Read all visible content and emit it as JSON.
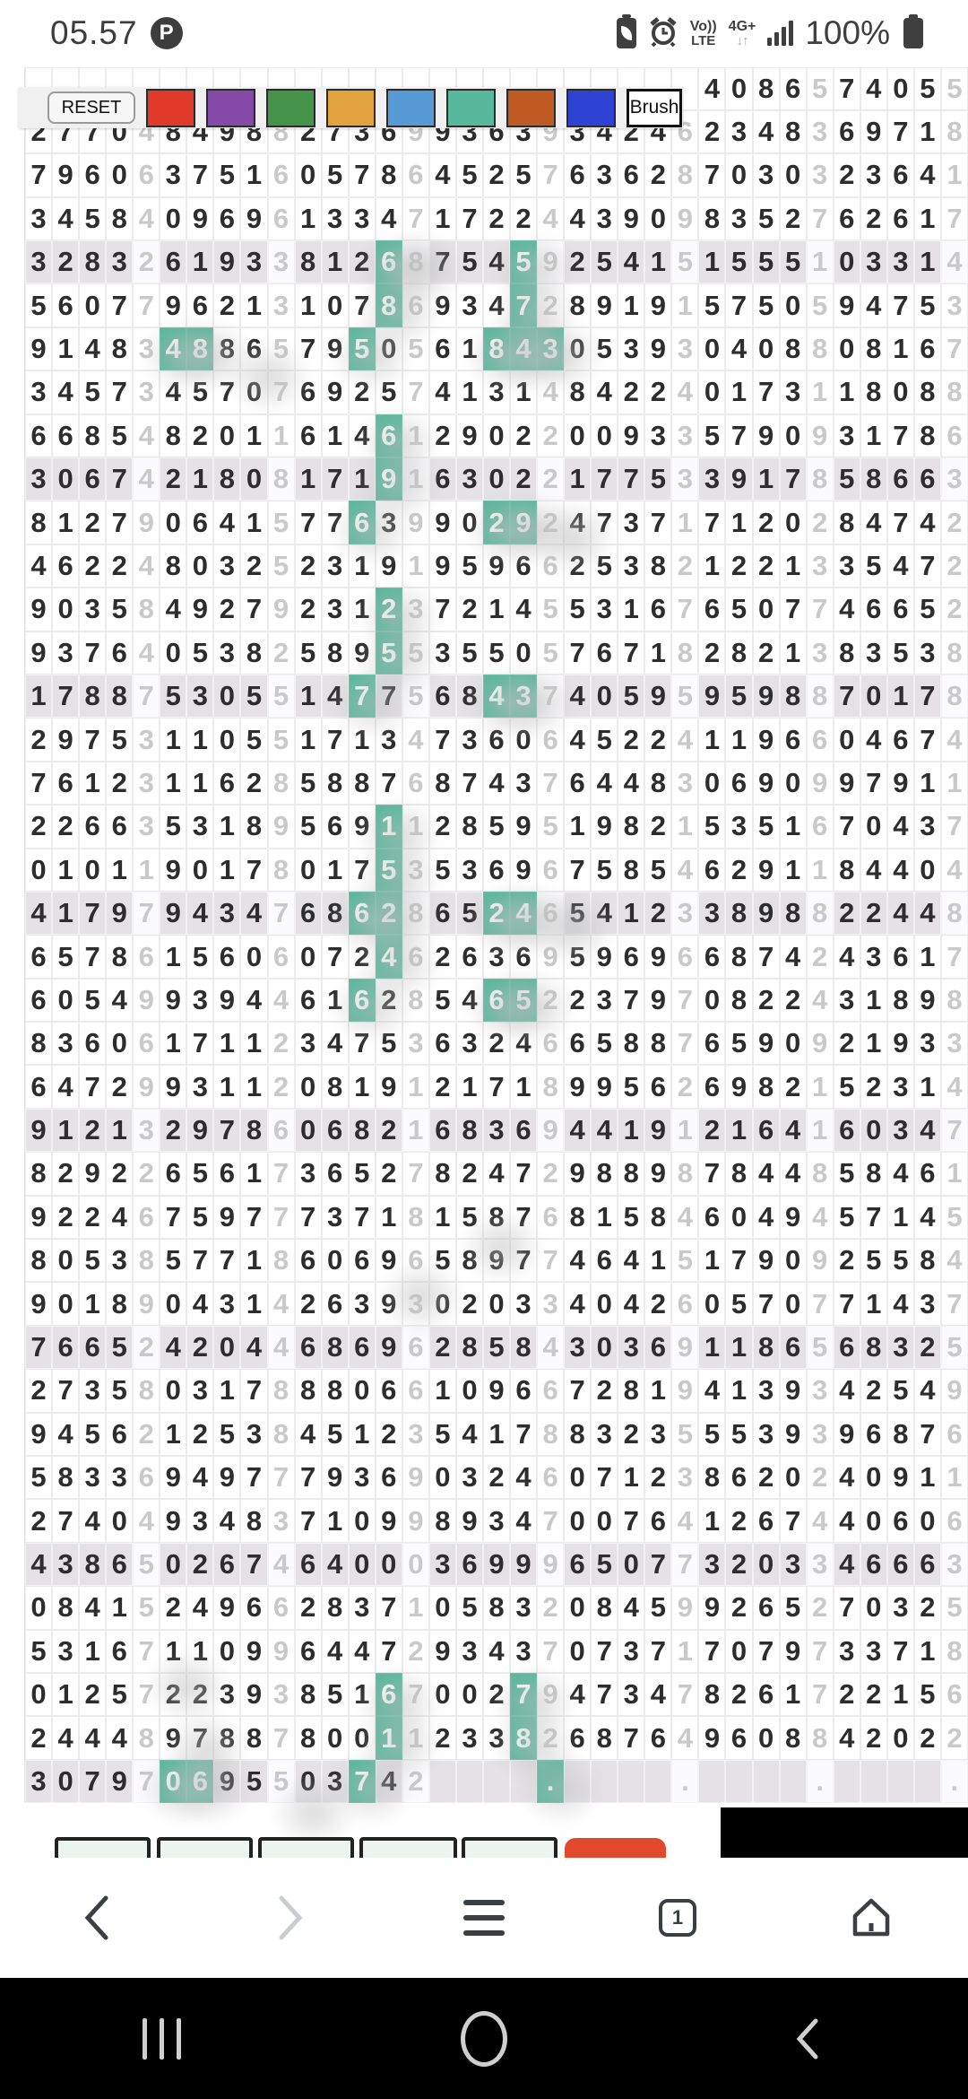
{
  "status_bar": {
    "time": "05.57",
    "app_icon": "pinterest",
    "pinterest_glyph": "P",
    "icons": [
      "battery-saver-icon",
      "alarm-icon",
      "volte-icon",
      "4g-plus-icon",
      "signal-icon",
      "battery-icon"
    ],
    "volte_top": "Vo))",
    "volte_bottom": "LTE",
    "net_top": "4G+",
    "net_arrows": "↓↑",
    "battery_pct": "100%"
  },
  "toolbar": {
    "reset_label": "RESET",
    "brush_label": "Brush",
    "palette": [
      {
        "name": "red",
        "hex": "#e23a2a"
      },
      {
        "name": "purple",
        "hex": "#8549a7"
      },
      {
        "name": "green",
        "hex": "#459249"
      },
      {
        "name": "orange",
        "hex": "#e2a23d"
      },
      {
        "name": "light-blue",
        "hex": "#569bd5"
      },
      {
        "name": "teal",
        "hex": "#57b89c"
      },
      {
        "name": "brown",
        "hex": "#bf5a22"
      },
      {
        "name": "blue",
        "hex": "#2e43d4"
      }
    ]
  },
  "grid": {
    "highlight_color": "#55b79b",
    "shaded_row_color": "#e4e2e5",
    "columns_per_row": 35,
    "rows": [
      {
        "cells": "                         4086574055",
        "shaded": false,
        "teal": []
      },
      {
        "cells": "27704849882736993639342462348369718",
        "shaded": false,
        "teal": []
      },
      {
        "cells": "79606375160578645257636287030323641",
        "shaded": false,
        "teal": []
      },
      {
        "cells": "34584096961334717224439098352762617",
        "shaded": false,
        "teal": []
      },
      {
        "cells": "32832619338126875459254151555103314",
        "shaded": true,
        "teal": [
          13,
          18
        ]
      },
      {
        "cells": "56077962131078693472891915750594753",
        "shaded": false,
        "teal": [
          13,
          18
        ]
      },
      {
        "cells": "91483488657950561843053930408808167",
        "shaded": false,
        "teal": [
          5,
          6,
          12,
          17,
          18,
          19
        ]
      },
      {
        "cells": "34573457076925741314842240173118088",
        "shaded": false,
        "teal": []
      },
      {
        "cells": "66854820116146129022009335790931786",
        "shaded": false,
        "teal": [
          13
        ]
      },
      {
        "cells": "30674218081719163022177533917858663",
        "shaded": true,
        "teal": [
          13
        ]
      },
      {
        "cells": "81279064157763990292473717120284742",
        "shaded": false,
        "teal": [
          12,
          17,
          18
        ]
      },
      {
        "cells": "46224803252319195966253821221335472",
        "shaded": false,
        "teal": []
      },
      {
        "cells": "90358492792312372145531676507746652",
        "shaded": false,
        "teal": [
          13
        ]
      },
      {
        "cells": "93764053825895535505767182821383538",
        "shaded": false,
        "teal": [
          13
        ]
      },
      {
        "cells": "17887530551477568437405959598870178",
        "shaded": true,
        "teal": [
          12,
          17,
          18
        ]
      },
      {
        "cells": "29753110551713473606452241196604674",
        "shaded": false,
        "teal": []
      },
      {
        "cells": "76123116285887687437644830690997911",
        "shaded": false,
        "teal": []
      },
      {
        "cells": "22663531895691128595198215351670437",
        "shaded": false,
        "teal": [
          13
        ]
      },
      {
        "cells": "01011901780175353696758546291184404",
        "shaded": false,
        "teal": [
          13
        ]
      },
      {
        "cells": "41797943476862865246541233898822448",
        "shaded": true,
        "teal": [
          12,
          13,
          17,
          18
        ]
      },
      {
        "cells": "65786156060724626369596966874243617",
        "shaded": false,
        "teal": [
          13
        ]
      },
      {
        "cells": "60549939446162854652237970822431898",
        "shaded": false,
        "teal": [
          12,
          17,
          18
        ]
      },
      {
        "cells": "83606171123475363246658876590921933",
        "shaded": false,
        "teal": []
      },
      {
        "cells": "64729931120819121718995626982152314",
        "shaded": false,
        "teal": []
      },
      {
        "cells": "91213297860682168369441912164160347",
        "shaded": true,
        "teal": []
      },
      {
        "cells": "82922656173652782472988987844858461",
        "shaded": false,
        "teal": []
      },
      {
        "cells": "92246759777371815876815846049457145",
        "shaded": false,
        "teal": []
      },
      {
        "cells": "80538577186069658977464151790925584",
        "shaded": false,
        "teal": []
      },
      {
        "cells": "90189043142639302033404260570771437",
        "shaded": false,
        "teal": []
      },
      {
        "cells": "76652420446869628584303691186568325",
        "shaded": true,
        "teal": []
      },
      {
        "cells": "27358031788806610966728194139342549",
        "shaded": false,
        "teal": []
      },
      {
        "cells": "94562125384512354178832355539396876",
        "shaded": false,
        "teal": []
      },
      {
        "cells": "58336949777936903246071238620240911",
        "shaded": false,
        "teal": []
      },
      {
        "cells": "27404934837109989347007641267440606",
        "shaded": false,
        "teal": []
      },
      {
        "cells": "43865026746400036999650773203346663",
        "shaded": true,
        "teal": []
      },
      {
        "cells": "08415249662837105832084599265270325",
        "shaded": false,
        "teal": []
      },
      {
        "cells": "53167110996447293437073717079733718",
        "shaded": false,
        "teal": []
      },
      {
        "cells": "01257223938516700279473478261722156",
        "shaded": false,
        "teal": [
          13,
          18
        ]
      },
      {
        "cells": "24448978878001123382687649608842022",
        "shaded": false,
        "teal": [
          13,
          18
        ]
      },
      {
        "cells": "307970695503742    .    .    .    .",
        "shaded": true,
        "teal": [
          5,
          6,
          12,
          19
        ]
      }
    ]
  },
  "bottom": {
    "digit_boxes": 5,
    "submit_button_color": "#e0492c",
    "black_panel": true
  },
  "browser_nav": {
    "tab_count": "1",
    "items": [
      "back",
      "forward",
      "menu",
      "tabs",
      "home"
    ]
  },
  "system_nav": {
    "items": [
      "recents",
      "home",
      "back"
    ]
  }
}
